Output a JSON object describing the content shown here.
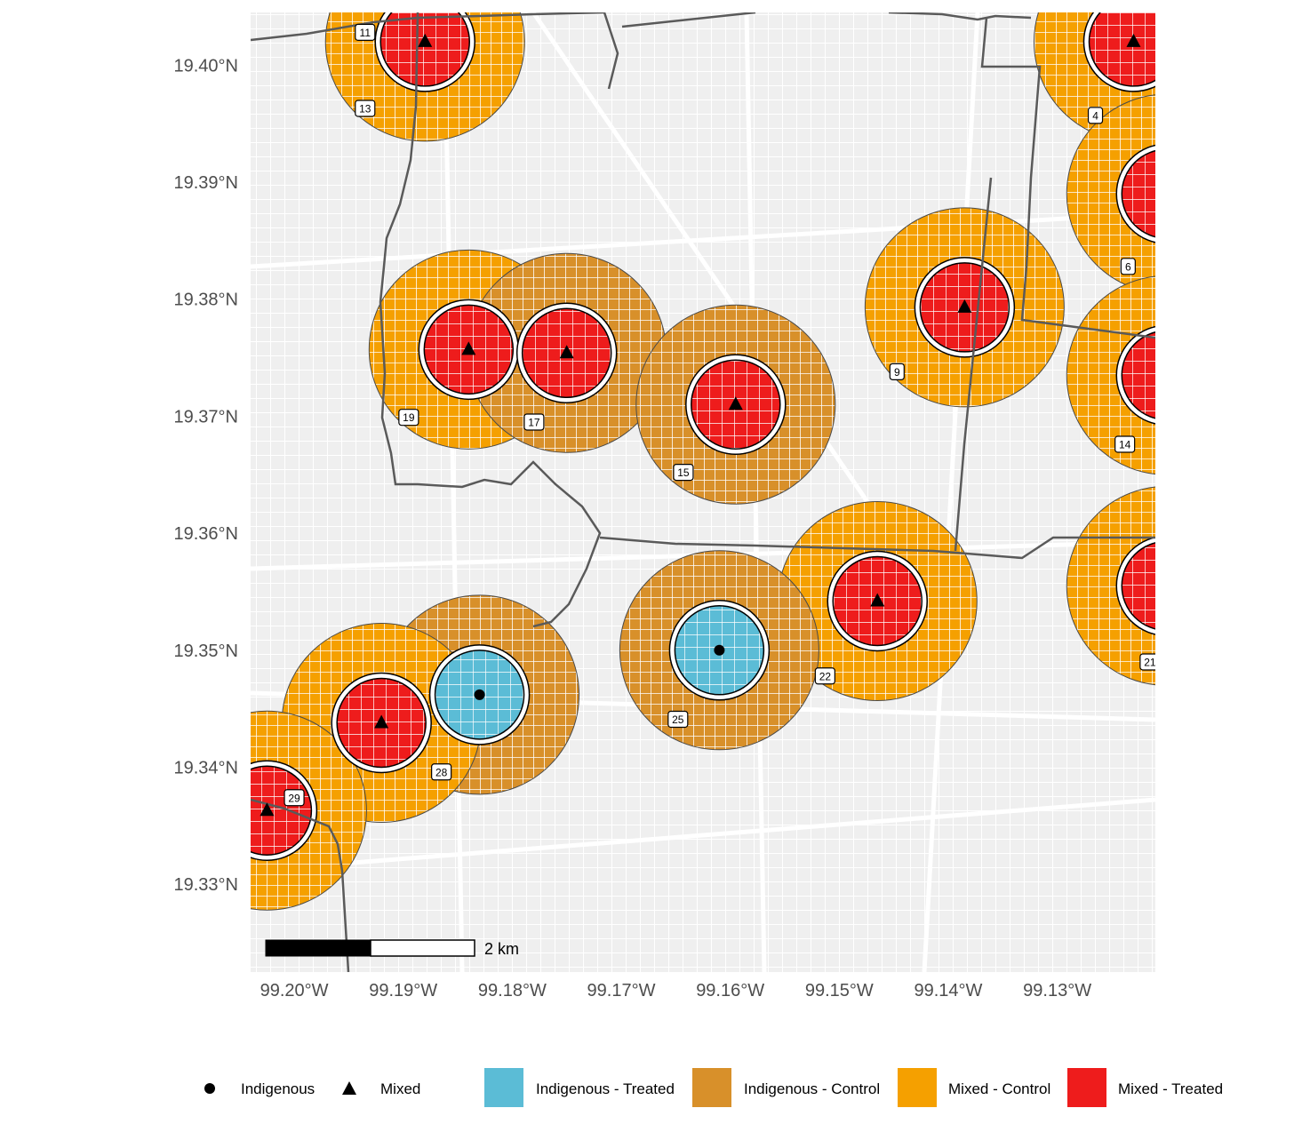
{
  "map": {
    "lat_ticks": [
      "19.40°N",
      "19.39°N",
      "19.38°N",
      "19.37°N",
      "19.36°N",
      "19.35°N",
      "19.34°N",
      "19.33°N"
    ],
    "lon_ticks": [
      "99.20°W",
      "99.19°W",
      "99.18°W",
      "99.17°W",
      "99.16°W",
      "99.15°W",
      "99.14°W",
      "99.13°W"
    ],
    "lat_values": [
      19.4,
      19.39,
      19.38,
      19.37,
      19.36,
      19.35,
      19.34,
      19.33
    ],
    "lon_values": [
      -99.2,
      -99.19,
      -99.18,
      -99.17,
      -99.16,
      -99.15,
      -99.14,
      -99.13
    ],
    "lon_range": [
      -99.204,
      -99.121
    ],
    "lat_range": [
      19.3225,
      19.4045
    ],
    "scale_bar_label": "2 km",
    "colors": {
      "background": "#efefef",
      "street": "#ffffff",
      "border": "#5a5a5a",
      "indigenous_treated": "#5bbcd6",
      "indigenous_control": "#d8902a",
      "mixed_control": "#f5a000",
      "mixed_treated": "#ee1c1c"
    },
    "sites": [
      {
        "id": "11",
        "type": "Mixed",
        "lon": -99.188,
        "lat": 19.402,
        "ring": "Mixed - Control"
      },
      {
        "id": "4",
        "type": "Mixed",
        "lon": -99.123,
        "lat": 19.402,
        "ring": "Mixed - Control"
      },
      {
        "id": "6",
        "type": "Mixed",
        "lon": -99.12,
        "lat": 19.389,
        "ring": "Mixed - Control"
      },
      {
        "id": "19",
        "type": "Mixed",
        "lon": -99.184,
        "lat": 19.3757,
        "ring": "Mixed - Control"
      },
      {
        "id": "17",
        "type": "Mixed",
        "lon": -99.175,
        "lat": 19.3754,
        "ring": "Indigenous - Control"
      },
      {
        "id": "15",
        "type": "Mixed",
        "lon": -99.1595,
        "lat": 19.371,
        "ring": "Indigenous - Control"
      },
      {
        "id": "9",
        "type": "Mixed",
        "lon": -99.1385,
        "lat": 19.3793,
        "ring": "Mixed - Control"
      },
      {
        "id": "14",
        "type": "Mixed",
        "lon": -99.12,
        "lat": 19.3735,
        "ring": "Mixed - Control"
      },
      {
        "id": "21",
        "type": "Mixed",
        "lon": -99.12,
        "lat": 19.3555,
        "ring": "Mixed - Control"
      },
      {
        "id": "22",
        "type": "Mixed",
        "lon": -99.1465,
        "lat": 19.3542,
        "ring": "Mixed - Control"
      },
      {
        "id": "25",
        "type": "Indigenous",
        "lon": -99.161,
        "lat": 19.35,
        "ring": "Indigenous - Control"
      },
      {
        "id": "28",
        "type": "Indigenous",
        "lon": -99.183,
        "lat": 19.3462,
        "ring": "Indigenous - Control"
      },
      {
        "id": "13",
        "type": "Mixed",
        "lon": -99.192,
        "lat": 19.3438,
        "ring": "Mixed - Control"
      },
      {
        "id": "29",
        "type": "Mixed",
        "lon": -99.2025,
        "lat": 19.3363,
        "ring": "Mixed - Control"
      }
    ],
    "labels": [
      {
        "text": "11",
        "lon": -99.1935,
        "lat": 19.4028
      },
      {
        "text": "13",
        "lon": -99.1935,
        "lat": 19.3963
      },
      {
        "text": "4",
        "lon": -99.1265,
        "lat": 19.3957
      },
      {
        "text": "6",
        "lon": -99.1235,
        "lat": 19.3828
      },
      {
        "text": "19",
        "lon": -99.1895,
        "lat": 19.3699
      },
      {
        "text": "17",
        "lon": -99.178,
        "lat": 19.3695
      },
      {
        "text": "15",
        "lon": -99.1643,
        "lat": 19.3652
      },
      {
        "text": "9",
        "lon": -99.1447,
        "lat": 19.3738
      },
      {
        "text": "14",
        "lon": -99.1238,
        "lat": 19.3676
      },
      {
        "text": "21",
        "lon": -99.1215,
        "lat": 19.349
      },
      {
        "text": "22",
        "lon": -99.1513,
        "lat": 19.3478
      },
      {
        "text": "25",
        "lon": -99.1648,
        "lat": 19.3441
      },
      {
        "text": "28",
        "lon": -99.1865,
        "lat": 19.3396
      },
      {
        "text": "29",
        "lon": -99.2,
        "lat": 19.3374
      }
    ]
  },
  "legend": {
    "shapes": [
      {
        "label": "Indigenous",
        "shape": "circle"
      },
      {
        "label": "Mixed",
        "shape": "triangle"
      }
    ],
    "fills": [
      {
        "label": "Indigenous - Treated",
        "color": "#5bbcd6"
      },
      {
        "label": "Indigenous - Control",
        "color": "#d8902a"
      },
      {
        "label": "Mixed - Control",
        "color": "#f5a000"
      },
      {
        "label": "Mixed - Treated",
        "color": "#ee1c1c"
      }
    ]
  }
}
